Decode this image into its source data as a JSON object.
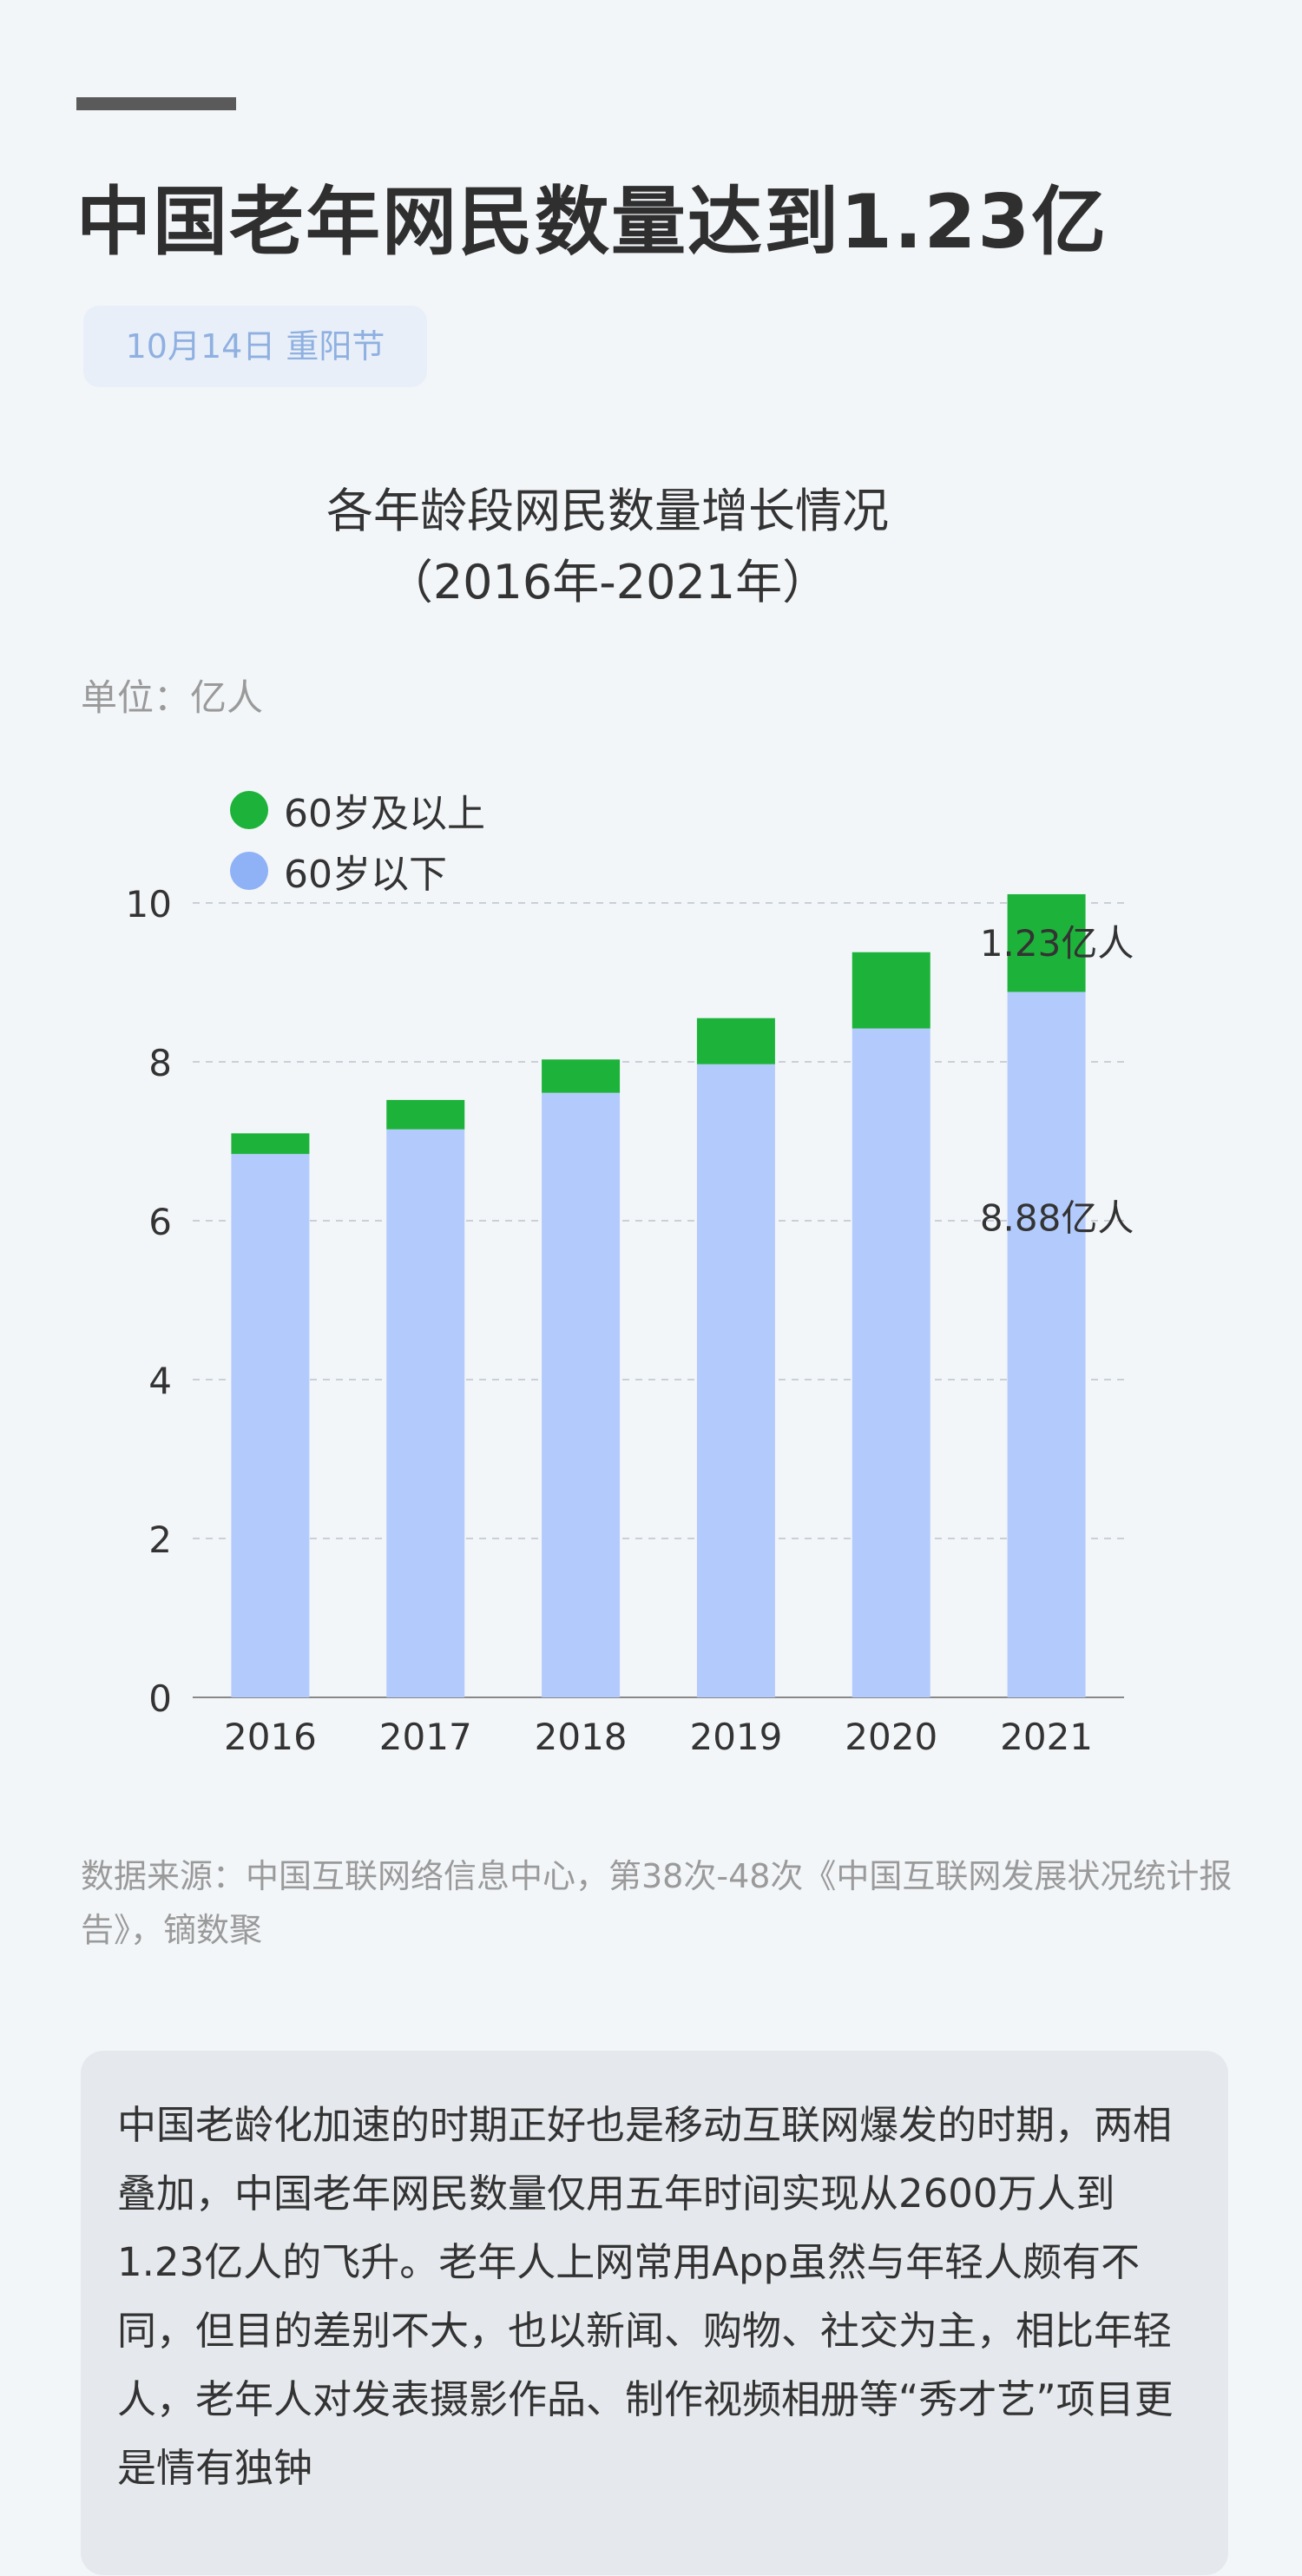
{
  "headline": "中国老年网民数量达到1.23亿",
  "date_tag": "10月14日 重阳节",
  "chart_data": {
    "type": "bar",
    "stacked": true,
    "title_line1": "各年龄段网民数量增长情况",
    "title_line2": "（2016年-2021年）",
    "unit": "单位：亿人",
    "categories": [
      "2016",
      "2017",
      "2018",
      "2019",
      "2020",
      "2021"
    ],
    "series": [
      {
        "name": "60岁以下",
        "color": "#b3cbfc",
        "values": [
          6.84,
          7.15,
          7.61,
          7.97,
          8.42,
          8.88
        ]
      },
      {
        "name": "60岁及以上",
        "color": "#1db33a",
        "values": [
          0.26,
          0.37,
          0.42,
          0.58,
          0.96,
          1.23
        ]
      }
    ],
    "legend_order": [
      "60岁及以上",
      "60岁以下"
    ],
    "legend_colors": [
      "#1db33a",
      "#8fb1f5"
    ],
    "ylim": [
      0,
      10
    ],
    "yticks": [
      0,
      2,
      4,
      6,
      8,
      10
    ],
    "grid": true,
    "legend_position": "top-left",
    "annotations": [
      {
        "text": "1.23亿人",
        "category": "2021",
        "series": "60岁及以上"
      },
      {
        "text": "8.88亿人",
        "category": "2021",
        "series": "60岁以下"
      }
    ]
  },
  "source": "数据来源：中国互联网络信息中心，第38次-48次《中国互联网发展状况统计报告》，镝数聚",
  "note": "中国老龄化加速的时期正好也是移动互联网爆发的时期，两相叠加，中国老年网民数量仅用五年时间实现从2600万人到1.23亿人的飞升。老年人上网常用App虽然与年轻人颇有不同，但目的差别不大，也以新闻、购物、社交为主，相比年轻人，老年人对发表摄影作品、制作视频相册等“秀才艺”项目更是情有独钟"
}
